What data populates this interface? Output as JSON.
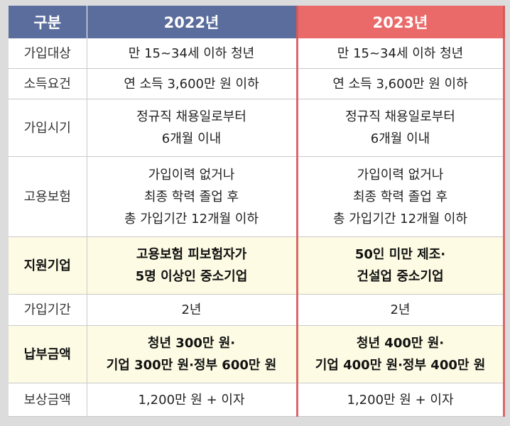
{
  "header": {
    "col0": "구분",
    "col1": "2022년",
    "col2": "2023년"
  },
  "rows": [
    {
      "label": "가입대상",
      "y2022": [
        "만 15~34세 이하 청년"
      ],
      "y2023": [
        "만 15~34세 이하 청년"
      ],
      "highlight": false
    },
    {
      "label": "소득요건",
      "y2022": [
        "연 소득 3,600만 원 이하"
      ],
      "y2023": [
        "연 소득 3,600만 원 이하"
      ],
      "highlight": false
    },
    {
      "label": "가입시기",
      "y2022": [
        "정규직 채용일로부터",
        "6개월 이내"
      ],
      "y2023": [
        "정규직 채용일로부터",
        "6개월 이내"
      ],
      "highlight": false
    },
    {
      "label": "고용보험",
      "y2022": [
        "가입이력 없거나",
        "최종 학력 졸업 후",
        "총 가입기간 12개월 이하"
      ],
      "y2023": [
        "가입이력 없거나",
        "최종 학력 졸업 후",
        "총 가입기간 12개월 이하"
      ],
      "highlight": false
    },
    {
      "label": "지원기업",
      "y2022": [
        "고용보험 피보험자가",
        "5명 이상인 중소기업"
      ],
      "y2023": [
        "50인 미만 제조·",
        "건설업 중소기업"
      ],
      "highlight": true
    },
    {
      "label": "가입기간",
      "y2022": [
        "2년"
      ],
      "y2023": [
        "2년"
      ],
      "highlight": false
    },
    {
      "label": "납부금액",
      "y2022": [
        "청년 300만 원·",
        "기업 300만 원·정부 600만 원"
      ],
      "y2023": [
        "청년 400만 원·",
        "기업 400만 원·정부 400만 원"
      ],
      "highlight": true
    },
    {
      "label": "보상금액",
      "y2022": [
        "1,200만 원 + 이자"
      ],
      "y2023": [
        "1,200만 원 + 이자"
      ],
      "highlight": false
    }
  ],
  "colors": {
    "header_2022": "#5b6d9c",
    "header_2023": "#ea6a6a",
    "highlight_row": "#fdfbe3",
    "accent_border": "#d9686a"
  }
}
